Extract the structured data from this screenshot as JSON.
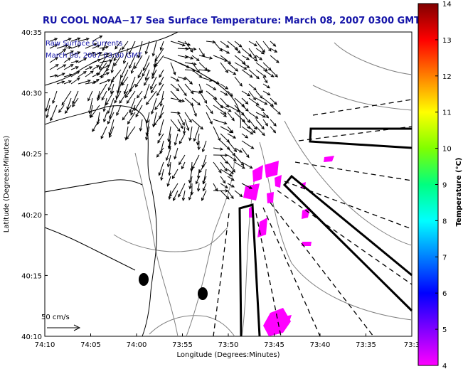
{
  "title": "RU COOL  NOAA−17  Sea Surface Temperature:  March 08, 2007 0300 GMT",
  "legend_note": {
    "line1": "Raw Surface Currents",
    "line2": "March 08, 2007 03:00 GMT"
  },
  "axes": {
    "x_label": "Longitude (Degrees:Minutes)",
    "y_label": "Latitude (Degrees:Minutes)",
    "x_ticks": [
      "74:10",
      "74:05",
      "74:00",
      "73:55",
      "73:50",
      "73:45",
      "73:40",
      "73:35",
      "73:3"
    ],
    "y_ticks": [
      "40:35",
      "40:30",
      "40:25",
      "40:20",
      "40:15",
      "40:10"
    ],
    "x_range": [
      "74:10",
      "73:30"
    ],
    "y_range": [
      "40:10",
      "40:35"
    ]
  },
  "scale_arrow": {
    "label": "50 cm/s"
  },
  "colorbar": {
    "label": "Temperature (°C)",
    "ticks": [
      "14",
      "13",
      "12",
      "11",
      "10",
      "9",
      "8",
      "7",
      "6",
      "5",
      "4"
    ],
    "range": [
      4,
      14
    ],
    "colors": [
      "#ff00ff",
      "#8000ff",
      "#0000ff",
      "#0080ff",
      "#00ffff",
      "#00ff80",
      "#80ff00",
      "#ffff00",
      "#ff8000",
      "#ff0000",
      "#800000"
    ]
  },
  "colors": {
    "sst_patch": "#ff00ff",
    "title_text": "#1414a8",
    "coastline": "#000000",
    "bathymetry": "#808080"
  }
}
